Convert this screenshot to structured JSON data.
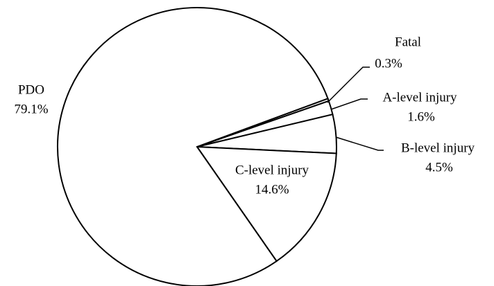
{
  "chart_data": {
    "type": "pie",
    "categories": [
      "Fatal",
      "A-level injury",
      "B-level injury",
      "C-level injury",
      "PDO"
    ],
    "values": [
      0.3,
      1.6,
      4.5,
      14.6,
      79.1
    ],
    "value_labels": [
      "0.3%",
      "1.6%",
      "4.5%",
      "14.6%",
      "79.1%"
    ],
    "color": "#ffffff"
  }
}
